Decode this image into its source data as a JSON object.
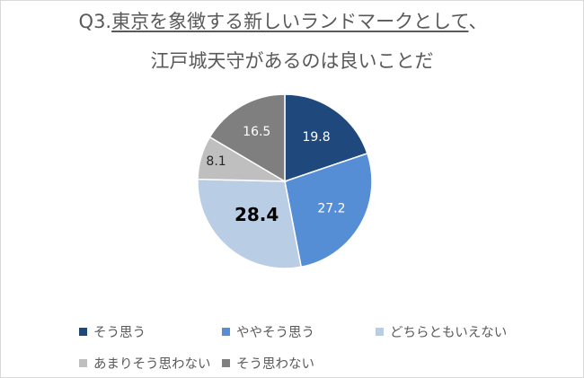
{
  "chart_data": {
    "type": "pie",
    "title_prefix": "Q3.",
    "title_underlined": "東京を象徴する新しいランドマークとして",
    "title_suffix": "、",
    "title_line2": "江戸城天守があるのは良いことだ",
    "start": "top",
    "direction": "clockwise",
    "slices": [
      {
        "name": "そう思う",
        "value": 19.8,
        "label": "19.8",
        "color": "#1F497D",
        "label_color": "#ffffff"
      },
      {
        "name": "ややそう思う",
        "value": 27.2,
        "label": "27.2",
        "color": "#558ED5",
        "label_color": "#ffffff"
      },
      {
        "name": "どちらともいえない",
        "value": 28.4,
        "label": "28.4",
        "color": "#B9CDE5",
        "label_color": "#000000",
        "emphasized": true
      },
      {
        "name": "あまりそう思わない",
        "value": 8.1,
        "label": "8.1",
        "color": "#BFBFBF",
        "label_color": "#262626"
      },
      {
        "name": "そう思わない",
        "value": 16.5,
        "label": "16.5",
        "color": "#7F7F7F",
        "label_color": "#ffffff"
      }
    ],
    "legend_position": "bottom"
  }
}
